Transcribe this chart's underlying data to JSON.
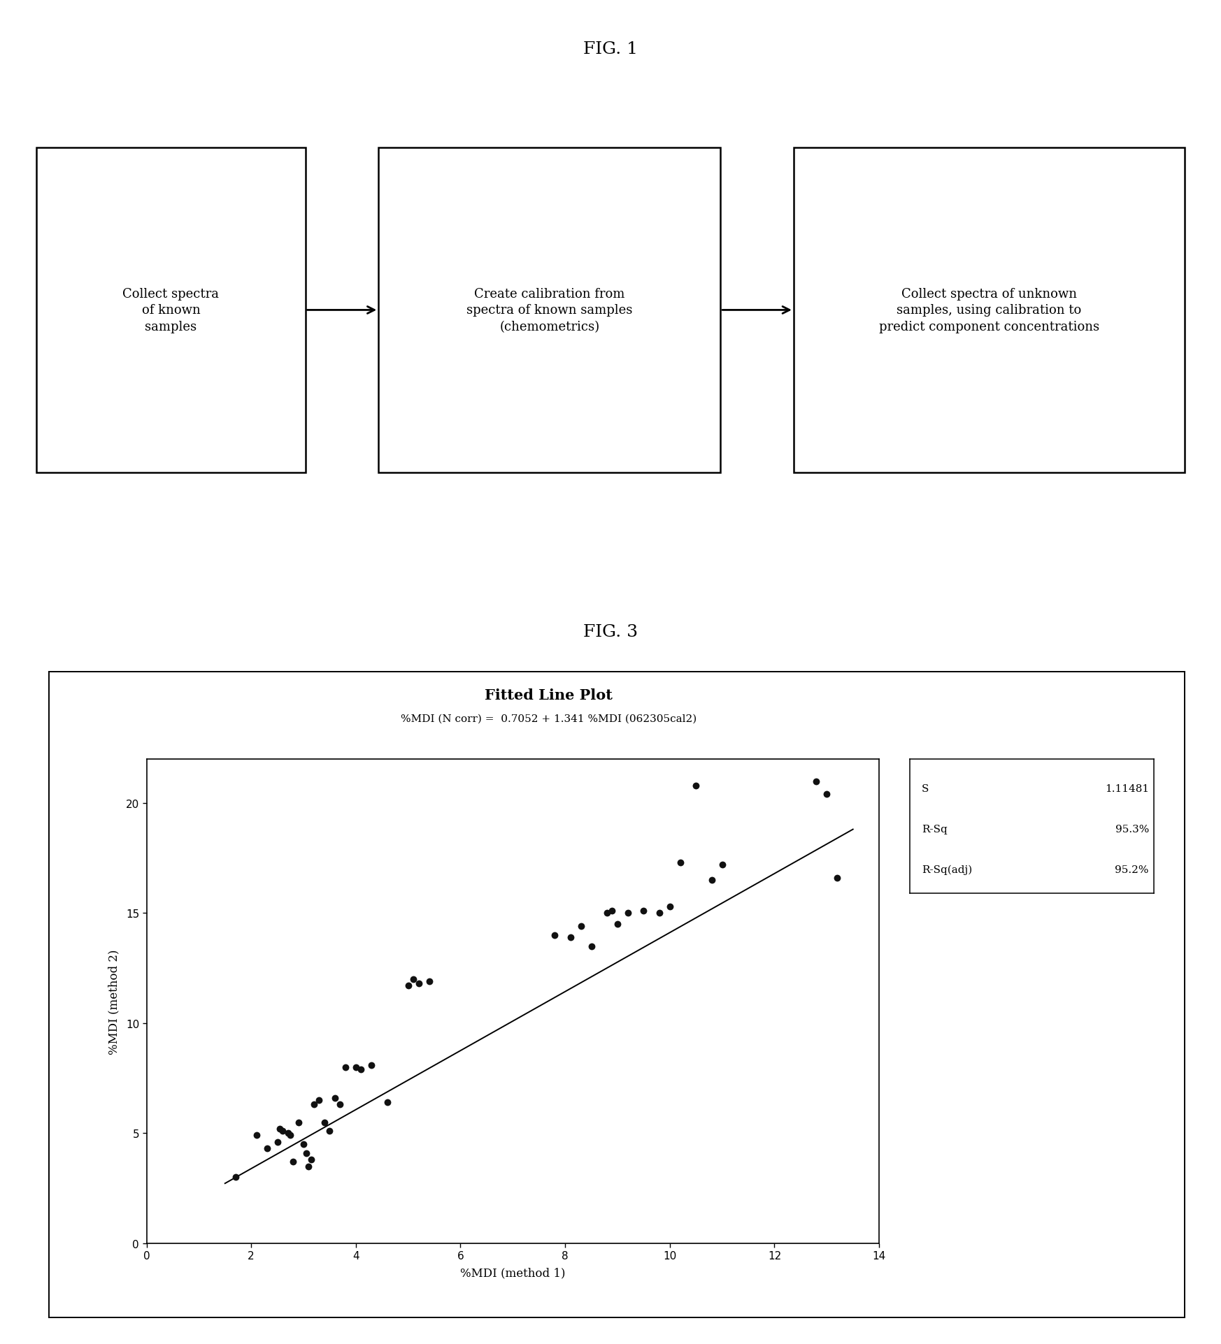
{
  "fig1_title": "FIG. 1",
  "fig3_title": "FIG. 3",
  "box1_text": "Collect spectra\nof known\nsamples",
  "box2_text": "Create calibration from\nspectra of known samples\n(chemometrics)",
  "box3_text": "Collect spectra of unknown\nsamples, using calibration to\npredict component concentrations",
  "plot_title": "Fitted Line Plot",
  "plot_subtitle": "%MDI (N corr) =  0.7052 + 1.341 %MDI (062305cal2)",
  "xlabel": "%MDI (method 1)",
  "ylabel": "%MDI (method 2)",
  "xlim": [
    0,
    14
  ],
  "ylim": [
    0,
    22
  ],
  "xticks": [
    0,
    2,
    4,
    6,
    8,
    10,
    12,
    14
  ],
  "yticks": [
    0,
    5,
    10,
    15,
    20
  ],
  "fit_intercept": 0.7052,
  "fit_slope": 1.341,
  "line_x_start": 1.5,
  "line_x_end": 13.5,
  "stats_labels": [
    "S",
    "R-Sq",
    "R-Sq(adj)"
  ],
  "stats_values": [
    "1.11481",
    "95.3%",
    "95.2%"
  ],
  "scatter_x": [
    1.7,
    2.1,
    2.3,
    2.5,
    2.55,
    2.6,
    2.7,
    2.75,
    2.8,
    2.9,
    3.0,
    3.05,
    3.1,
    3.15,
    3.2,
    3.3,
    3.4,
    3.5,
    3.6,
    3.7,
    3.8,
    4.0,
    4.1,
    4.3,
    4.6,
    5.0,
    5.1,
    5.2,
    5.4,
    7.8,
    8.1,
    8.3,
    8.5,
    8.8,
    8.9,
    9.0,
    9.2,
    9.5,
    9.8,
    10.0,
    10.2,
    10.5,
    10.8,
    11.0,
    12.8,
    13.0,
    13.2
  ],
  "scatter_y": [
    3.0,
    4.9,
    4.3,
    4.6,
    5.2,
    5.1,
    5.0,
    4.9,
    3.7,
    5.5,
    4.5,
    4.1,
    3.5,
    3.8,
    6.3,
    6.5,
    5.5,
    5.1,
    6.6,
    6.3,
    8.0,
    8.0,
    7.9,
    8.1,
    6.4,
    11.7,
    12.0,
    11.8,
    11.9,
    14.0,
    13.9,
    14.4,
    13.5,
    15.0,
    15.1,
    14.5,
    15.0,
    15.1,
    15.0,
    15.3,
    17.3,
    20.8,
    16.5,
    17.2,
    21.0,
    20.4,
    16.6
  ],
  "background_color": "#ffffff",
  "box_edge_color": "#000000",
  "scatter_color": "#111111",
  "line_color": "#000000"
}
